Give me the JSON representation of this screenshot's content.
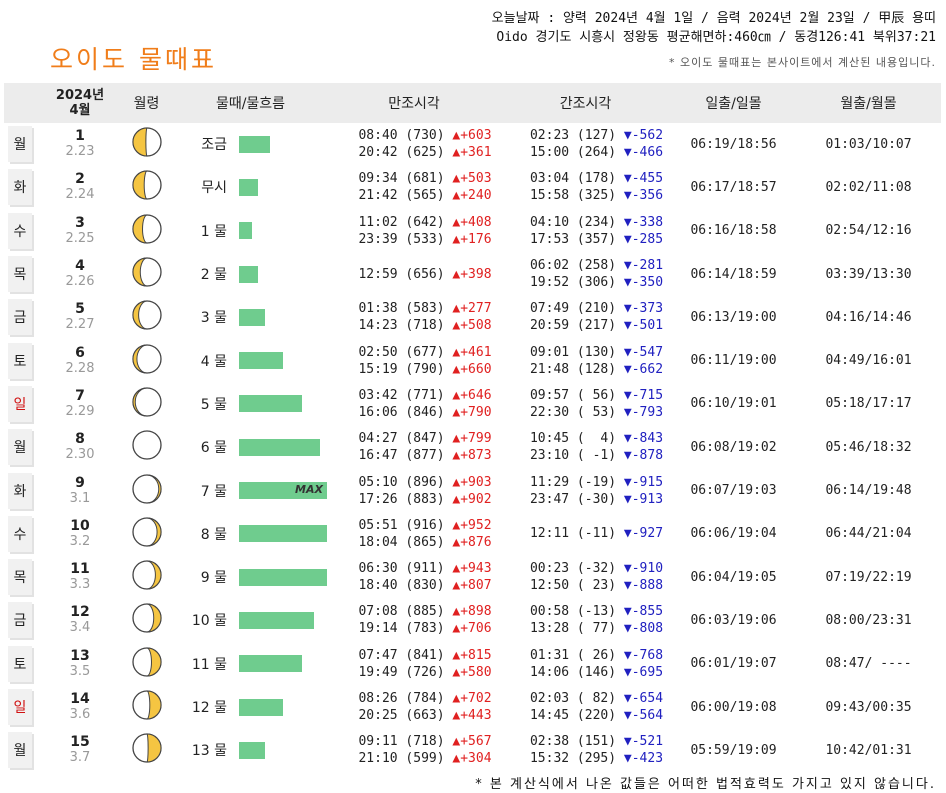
{
  "header": {
    "line1": "오늘날짜 : 양력 2024년 4월 1일 / 음력 2024년 2월 23일 / 甲辰 용띠",
    "line2": "Oido 경기도 시흥시 정왕동 평균해면하:460㎝ / 동경126:41 북위37:21",
    "title": "오이도 물때표",
    "notice": "* 오이도 물때표는 본사이트에서 계산된 내용입니다."
  },
  "columns": {
    "year": "2024년",
    "month": "4월",
    "moon": "월령",
    "flow": "물때/물흐름",
    "high": "만조시각",
    "low": "간조시각",
    "sun": "일출/일몰",
    "moonrise": "월출/월몰"
  },
  "rows": [
    {
      "weekday": "월",
      "sunday": false,
      "day": "1",
      "lunar": "2.23",
      "moon_phase": 0.77,
      "flow_label": "조금",
      "flow_level": 0.35,
      "max": false,
      "high": [
        "08:40 (730) ▲+603",
        "20:42 (625) ▲+361"
      ],
      "low": [
        "02:23 (127) ▼-562",
        "15:00 (264) ▼-466"
      ],
      "sun": "06:19/18:56",
      "moonrise": "01:03/10:07"
    },
    {
      "weekday": "화",
      "sunday": false,
      "day": "2",
      "lunar": "2.24",
      "moon_phase": 0.8,
      "flow_label": "무시",
      "flow_level": 0.22,
      "max": false,
      "high": [
        "09:34 (681) ▲+503",
        "21:42 (565) ▲+240"
      ],
      "low": [
        "03:04 (178) ▼-455",
        "15:58 (325) ▼-356"
      ],
      "sun": "06:17/18:57",
      "moonrise": "02:02/11:08"
    },
    {
      "weekday": "수",
      "sunday": false,
      "day": "3",
      "lunar": "2.25",
      "moon_phase": 0.83,
      "flow_label": "1 물",
      "flow_level": 0.15,
      "max": false,
      "high": [
        "11:02 (642) ▲+408",
        "23:39 (533) ▲+176"
      ],
      "low": [
        "04:10 (234) ▼-338",
        "17:53 (357) ▼-285"
      ],
      "sun": "06:16/18:58",
      "moonrise": "02:54/12:16"
    },
    {
      "weekday": "목",
      "sunday": false,
      "day": "4",
      "lunar": "2.26",
      "moon_phase": 0.87,
      "flow_label": "2 물",
      "flow_level": 0.22,
      "max": false,
      "high": [
        "12:59 (656) ▲+398"
      ],
      "low": [
        "06:02 (258) ▼-281",
        "19:52 (306) ▼-350"
      ],
      "sun": "06:14/18:59",
      "moonrise": "03:39/13:30"
    },
    {
      "weekday": "금",
      "sunday": false,
      "day": "5",
      "lunar": "2.27",
      "moon_phase": 0.9,
      "flow_label": "3 물",
      "flow_level": 0.29,
      "max": false,
      "high": [
        "01:38 (583) ▲+277",
        "14:23 (718) ▲+508"
      ],
      "low": [
        "07:49 (210) ▼-373",
        "20:59 (217) ▼-501"
      ],
      "sun": "06:13/19:00",
      "moonrise": "04:16/14:46"
    },
    {
      "weekday": "토",
      "sunday": false,
      "day": "6",
      "lunar": "2.28",
      "moon_phase": 0.93,
      "flow_label": "4 물",
      "flow_level": 0.5,
      "max": false,
      "high": [
        "02:50 (677) ▲+461",
        "15:19 (790) ▲+660"
      ],
      "low": [
        "09:01 (130) ▼-547",
        "21:48 (128) ▼-662"
      ],
      "sun": "06:11/19:00",
      "moonrise": "04:49/16:01"
    },
    {
      "weekday": "일",
      "sunday": true,
      "day": "7",
      "lunar": "2.29",
      "moon_phase": 0.96,
      "flow_label": "5 물",
      "flow_level": 0.72,
      "max": false,
      "high": [
        "03:42 (771) ▲+646",
        "16:06 (846) ▲+790"
      ],
      "low": [
        "09:57 ( 56) ▼-715",
        "22:30 ( 53) ▼-793"
      ],
      "sun": "06:10/19:01",
      "moonrise": "05:18/17:17"
    },
    {
      "weekday": "월",
      "sunday": false,
      "day": "8",
      "lunar": "2.30",
      "moon_phase": 0.0,
      "flow_label": "6 물",
      "flow_level": 0.92,
      "max": false,
      "high": [
        "04:27 (847) ▲+799",
        "16:47 (877) ▲+873"
      ],
      "low": [
        "10:45 (  4) ▼-843",
        "23:10 ( -1) ▼-878"
      ],
      "sun": "06:08/19:02",
      "moonrise": "05:46/18:32"
    },
    {
      "weekday": "화",
      "sunday": false,
      "day": "9",
      "lunar": "3.1",
      "moon_phase": 0.04,
      "flow_label": "7 물",
      "flow_level": 1.0,
      "max": true,
      "high": [
        "05:10 (896) ▲+903",
        "17:26 (883) ▲+902"
      ],
      "low": [
        "11:29 (-19) ▼-915",
        "23:47 (-30) ▼-913"
      ],
      "sun": "06:07/19:03",
      "moonrise": "06:14/19:48"
    },
    {
      "weekday": "수",
      "sunday": false,
      "day": "10",
      "lunar": "3.2",
      "moon_phase": 0.07,
      "flow_label": "8 물",
      "flow_level": 1.0,
      "max": false,
      "high": [
        "05:51 (916) ▲+952",
        "18:04 (865) ▲+876"
      ],
      "low": [
        "12:11 (-11) ▼-927"
      ],
      "sun": "06:06/19:04",
      "moonrise": "06:44/21:04"
    },
    {
      "weekday": "목",
      "sunday": false,
      "day": "11",
      "lunar": "3.3",
      "moon_phase": 0.1,
      "flow_label": "9 물",
      "flow_level": 1.0,
      "max": false,
      "high": [
        "06:30 (911) ▲+943",
        "18:40 (830) ▲+807"
      ],
      "low": [
        "00:23 (-32) ▼-910",
        "12:50 ( 23) ▼-888"
      ],
      "sun": "06:04/19:05",
      "moonrise": "07:19/22:19"
    },
    {
      "weekday": "금",
      "sunday": false,
      "day": "12",
      "lunar": "3.4",
      "moon_phase": 0.13,
      "flow_label": "10 물",
      "flow_level": 0.85,
      "max": false,
      "high": [
        "07:08 (885) ▲+898",
        "19:14 (783) ▲+706"
      ],
      "low": [
        "00:58 (-13) ▼-855",
        "13:28 ( 77) ▼-808"
      ],
      "sun": "06:03/19:06",
      "moonrise": "08:00/23:31"
    },
    {
      "weekday": "토",
      "sunday": false,
      "day": "13",
      "lunar": "3.5",
      "moon_phase": 0.17,
      "flow_label": "11 물",
      "flow_level": 0.72,
      "max": false,
      "high": [
        "07:47 (841) ▲+815",
        "19:49 (726) ▲+580"
      ],
      "low": [
        "01:31 ( 26) ▼-768",
        "14:06 (146) ▼-695"
      ],
      "sun": "06:01/19:07",
      "moonrise": "08:47/ ----"
    },
    {
      "weekday": "일",
      "sunday": true,
      "day": "14",
      "lunar": "3.6",
      "moon_phase": 0.2,
      "flow_label": "12 물",
      "flow_level": 0.5,
      "max": false,
      "high": [
        "08:26 (784) ▲+702",
        "20:25 (663) ▲+443"
      ],
      "low": [
        "02:03 ( 82) ▼-654",
        "14:45 (220) ▼-564"
      ],
      "sun": "06:00/19:08",
      "moonrise": "09:43/00:35"
    },
    {
      "weekday": "월",
      "sunday": false,
      "day": "15",
      "lunar": "3.7",
      "moon_phase": 0.23,
      "flow_label": "13 물",
      "flow_level": 0.29,
      "max": false,
      "high": [
        "09:11 (718) ▲+567",
        "21:10 (599) ▲+304"
      ],
      "low": [
        "02:38 (151) ▼-521",
        "15:32 (295) ▼-423"
      ],
      "sun": "05:59/19:09",
      "moonrise": "10:42/01:31"
    }
  ],
  "max_label": "MAX",
  "footer": "* 본 계산식에서 나온 값들은 어떠한 법적효력도 가지고 있지 않습니다.",
  "colors": {
    "title": "#f07d1a",
    "bar": "#6fcc8e",
    "moon": "#f5c542",
    "up": "#e02020",
    "down": "#2020c0",
    "sunday": "#d01010"
  }
}
